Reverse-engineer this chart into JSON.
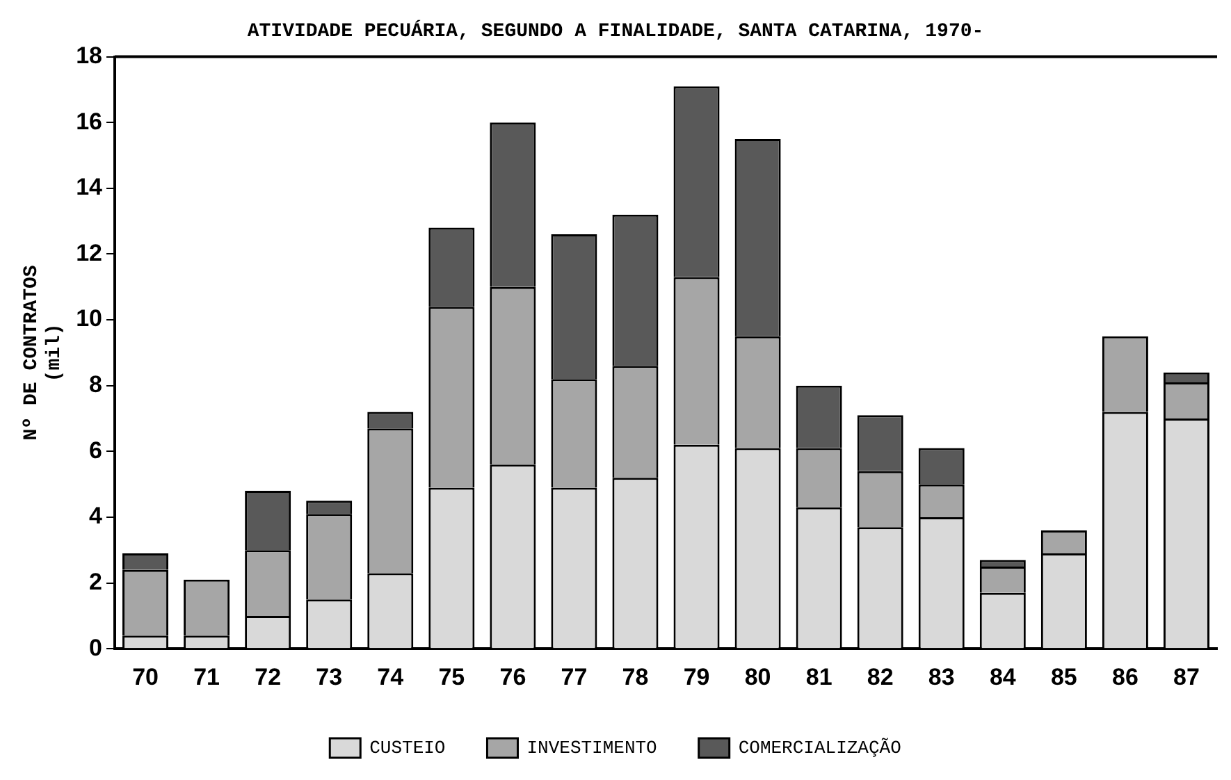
{
  "chart_data": {
    "type": "bar",
    "stacked": true,
    "title": "ATIVIDADE PECUÁRIA, SEGUNDO A FINALIDADE, SANTA CATARINA, 1970-",
    "ylabel": "Nº DE CONTRATOS\n(mil)",
    "categories": [
      "70",
      "71",
      "72",
      "73",
      "74",
      "75",
      "76",
      "77",
      "78",
      "79",
      "80",
      "81",
      "82",
      "83",
      "84",
      "85",
      "86",
      "87"
    ],
    "series": [
      {
        "name": "CUSTEIO",
        "color": "#d9d9d9",
        "values": [
          0.4,
          0.4,
          1.0,
          1.5,
          2.3,
          4.9,
          5.6,
          4.9,
          5.2,
          6.2,
          6.1,
          4.3,
          3.7,
          4.0,
          1.7,
          2.9,
          7.2,
          7.0
        ]
      },
      {
        "name": "INVESTIMENTO",
        "color": "#a6a6a6",
        "values": [
          2.0,
          1.7,
          2.0,
          2.6,
          4.4,
          5.5,
          5.4,
          3.3,
          3.4,
          5.1,
          3.4,
          1.8,
          1.7,
          1.0,
          0.8,
          0.7,
          2.3,
          1.1
        ]
      },
      {
        "name": "COMERCIALIZAÇÃO",
        "color": "#595959",
        "values": [
          0.5,
          0,
          1.8,
          0.4,
          0.5,
          2.4,
          5.0,
          4.4,
          4.6,
          5.8,
          6.0,
          1.9,
          1.7,
          1.1,
          0.2,
          0,
          0,
          0.3
        ]
      }
    ],
    "ylim": [
      0,
      18
    ],
    "yticks": [
      0,
      2,
      4,
      6,
      8,
      10,
      12,
      14,
      16,
      18
    ],
    "grid": false,
    "legend": "bottom"
  }
}
